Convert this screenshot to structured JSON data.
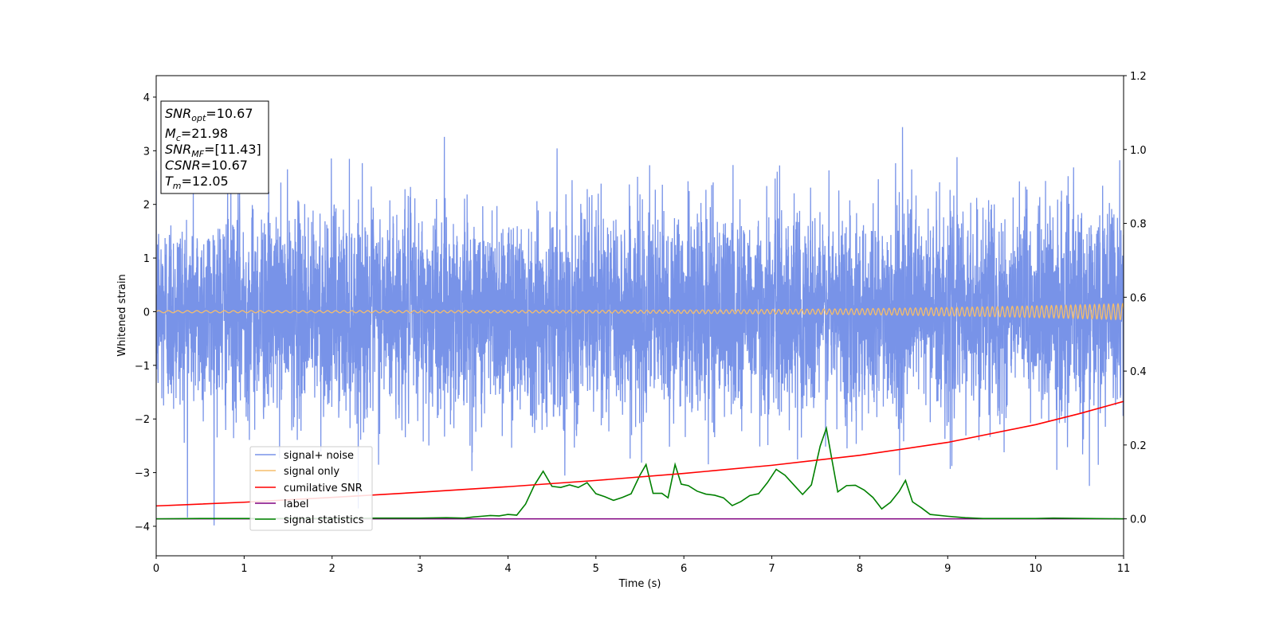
{
  "chart_data": {
    "type": "line",
    "xlabel": "Time (s)",
    "ylabel": "Whitened strain",
    "xlim": [
      0,
      11
    ],
    "ylim": [
      -4.55,
      4.4
    ],
    "y2lim": [
      -0.1,
      1.2
    ],
    "x_ticks": [
      "0",
      "1",
      "2",
      "3",
      "4",
      "5",
      "6",
      "7",
      "8",
      "9",
      "10",
      "11"
    ],
    "y_ticks": [
      "4",
      "3",
      "2",
      "1",
      "0",
      "−1",
      "−2",
      "−3",
      "−4"
    ],
    "y2_ticks": [
      "1.2",
      "1.0",
      "0.8",
      "0.6",
      "0.4",
      "0.2",
      "0.0"
    ],
    "grid": false,
    "legend_position": "lower-left",
    "annotation": {
      "snr_opt": {
        "sym": "SNR",
        "sub": "opt",
        "value": "=10.67"
      },
      "mc": {
        "sym": "M",
        "sub": "c",
        "value": "=21.98"
      },
      "snr_mf": {
        "sym": "SNR",
        "sub": "MF",
        "value": "=[11.43]"
      },
      "csnr": {
        "sym": "CSNR",
        "value": "=10.67"
      },
      "tm": {
        "sym": "T",
        "sub": "m",
        "value": "=12.05"
      }
    },
    "series": [
      {
        "name": "signal+ noise",
        "color": "#7893e8",
        "axis": "left",
        "noise_std": 0.95,
        "range": [
          -4.2,
          4.05
        ]
      },
      {
        "name": "signal only",
        "color": "#f5bd6b",
        "axis": "left",
        "amplitude_start": 0.02,
        "amplitude_end": 0.15
      },
      {
        "name": "cumilative SNR",
        "color": "#ff0000",
        "axis": "right",
        "x": [
          0,
          1,
          2,
          3,
          4,
          5,
          6,
          7,
          8,
          9,
          10,
          10.5,
          11
        ],
        "y": [
          0.035,
          0.045,
          0.058,
          0.072,
          0.087,
          0.104,
          0.123,
          0.145,
          0.172,
          0.207,
          0.255,
          0.285,
          0.318
        ]
      },
      {
        "name": "label",
        "color": "#800080",
        "axis": "right",
        "x": [
          0,
          11
        ],
        "y": [
          0,
          0
        ]
      },
      {
        "name": "signal statistics",
        "color": "#008000",
        "axis": "right",
        "x": [
          0,
          0.5,
          1,
          1.5,
          2,
          2.5,
          3,
          3.3,
          3.5,
          3.6,
          3.7,
          3.8,
          3.9,
          4.0,
          4.1,
          4.2,
          4.3,
          4.4,
          4.5,
          4.6,
          4.7,
          4.8,
          4.9,
          5.0,
          5.1,
          5.2,
          5.3,
          5.4,
          5.5,
          5.57,
          5.65,
          5.75,
          5.82,
          5.9,
          5.97,
          6.05,
          6.15,
          6.25,
          6.35,
          6.45,
          6.55,
          6.65,
          6.75,
          6.85,
          6.95,
          7.05,
          7.15,
          7.25,
          7.35,
          7.45,
          7.55,
          7.62,
          7.68,
          7.75,
          7.85,
          7.95,
          8.05,
          8.15,
          8.25,
          8.35,
          8.45,
          8.52,
          8.6,
          8.7,
          8.8,
          9.0,
          9.2,
          9.4,
          10.0,
          10.2,
          10.6,
          11.0
        ],
        "y": [
          0.0,
          0.001,
          0.001,
          0.001,
          0.001,
          0.002,
          0.002,
          0.003,
          0.002,
          0.005,
          0.007,
          0.009,
          0.008,
          0.012,
          0.01,
          0.04,
          0.091,
          0.129,
          0.088,
          0.085,
          0.092,
          0.085,
          0.098,
          0.068,
          0.06,
          0.05,
          0.058,
          0.068,
          0.118,
          0.147,
          0.069,
          0.069,
          0.057,
          0.147,
          0.094,
          0.09,
          0.075,
          0.067,
          0.064,
          0.057,
          0.036,
          0.047,
          0.063,
          0.068,
          0.098,
          0.134,
          0.118,
          0.092,
          0.066,
          0.092,
          0.197,
          0.245,
          0.165,
          0.073,
          0.09,
          0.091,
          0.078,
          0.058,
          0.027,
          0.045,
          0.075,
          0.104,
          0.046,
          0.03,
          0.012,
          0.007,
          0.003,
          0.001,
          0.001,
          0.002,
          0.001,
          0.0
        ]
      }
    ]
  }
}
